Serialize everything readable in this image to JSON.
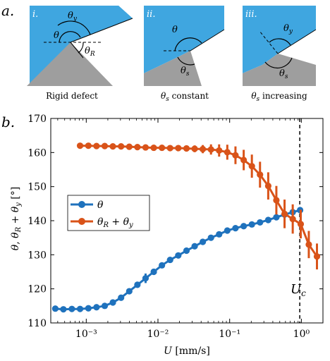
{
  "panel_a": {
    "label": "a.",
    "sub": [
      {
        "roman": "i.",
        "caption": "Rigid defect",
        "angles": [
          "θ",
          "θ",
          "θR"
        ]
      },
      {
        "roman": "ii.",
        "caption": "θs constant",
        "angles": [
          "θ",
          "θs"
        ]
      },
      {
        "roman": "iii.",
        "caption": "θs increasing",
        "angles": [
          "θy",
          "θs"
        ]
      }
    ],
    "colors": {
      "liquid": "#3FA6E0",
      "solid": "#9E9E9E"
    }
  },
  "panel_b_label": "b.",
  "chart_data": {
    "type": "line",
    "xscale": "log",
    "xlabel": "U [mm/s]",
    "ylabel": "θ, θR + θy [°]",
    "xlim": [
      0.00032,
      2.0
    ],
    "ylim": [
      110,
      170
    ],
    "yticks": [
      110,
      120,
      130,
      140,
      150,
      160,
      170
    ],
    "xticks": [
      0.001,
      0.01,
      0.1,
      1
    ],
    "xtick_labels": [
      "10⁻³",
      "10⁻²",
      "10⁻¹",
      "10⁰"
    ],
    "legend_position": "center-left",
    "annotation": {
      "text": "Uc",
      "x": 0.95
    },
    "series": [
      {
        "name": "θ",
        "color": "#1F72BD",
        "x": [
          0.00037,
          0.00048,
          0.00063,
          0.00082,
          0.00107,
          0.00139,
          0.00181,
          0.00235,
          0.00306,
          0.00398,
          0.00517,
          0.00672,
          0.00874,
          0.01136,
          0.01477,
          0.0192,
          0.025,
          0.0325,
          0.0422,
          0.0549,
          0.0713,
          0.0927,
          0.1205,
          0.157,
          0.204,
          0.265,
          0.345,
          0.448,
          0.583,
          0.758,
          0.96
        ],
        "y": [
          114.2,
          114.0,
          114.1,
          114.1,
          114.3,
          114.6,
          115.0,
          116.0,
          117.4,
          119.3,
          121.2,
          123.1,
          125.0,
          126.9,
          128.5,
          129.8,
          131.2,
          132.5,
          133.8,
          135.0,
          136.0,
          137.1,
          137.8,
          138.4,
          138.9,
          139.5,
          140.2,
          141.0,
          141.8,
          142.5,
          143.1
        ],
        "err": [
          0,
          0,
          0,
          0,
          0,
          0,
          0,
          0.3,
          0.4,
          0.6,
          0.9,
          1.4,
          0.9,
          0.6,
          0.4,
          0.3,
          0.3,
          0.3,
          0.3,
          0.3,
          0.2,
          0.2,
          0.2,
          0.2,
          0.2,
          0.2,
          0.2,
          0.2,
          0.2,
          0.2,
          0.2
        ]
      },
      {
        "name": "θR + θy",
        "color": "#D95319",
        "x": [
          0.00082,
          0.00107,
          0.00139,
          0.00181,
          0.00235,
          0.00306,
          0.00398,
          0.00517,
          0.00672,
          0.00874,
          0.01136,
          0.01477,
          0.0192,
          0.025,
          0.0325,
          0.0422,
          0.0549,
          0.0713,
          0.0927,
          0.1205,
          0.157,
          0.204,
          0.265,
          0.345,
          0.448,
          0.583,
          0.758,
          0.98,
          1.27,
          1.65
        ],
        "y": [
          162.0,
          162.0,
          161.9,
          161.9,
          161.8,
          161.8,
          161.7,
          161.6,
          161.5,
          161.4,
          161.4,
          161.3,
          161.3,
          161.2,
          161.1,
          161.0,
          160.9,
          160.6,
          160.1,
          159.2,
          157.8,
          156.0,
          153.5,
          150.2,
          146.0,
          142.0,
          140.5,
          139.0,
          133.0,
          129.5
        ],
        "err": [
          0,
          0,
          0,
          0,
          0,
          0,
          0,
          0,
          0,
          0,
          0.5,
          0.6,
          0.7,
          0.8,
          1.0,
          1.2,
          1.5,
          1.8,
          2.2,
          2.6,
          3.0,
          3.4,
          3.8,
          4.0,
          4.2,
          4.2,
          4.3,
          4.2,
          4.0,
          3.8
        ]
      }
    ]
  }
}
